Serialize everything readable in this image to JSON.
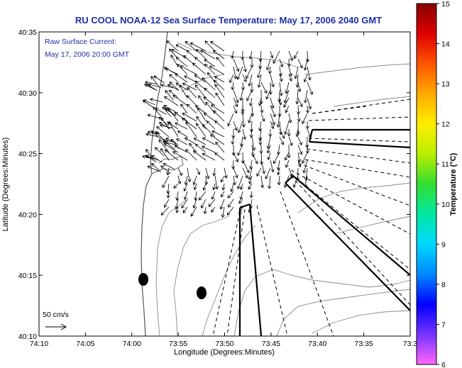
{
  "title": "RU COOL  NOAA-12  Sea Surface Temperature:  May 17, 2006 2040 GMT",
  "inset": {
    "line1": "Raw Surface Current:",
    "line2": "May 17, 2006 20:00 GMT"
  },
  "scale_label": "50 cm/s",
  "axes": {
    "xlabel": "Longitude (Degrees:Minutes)",
    "ylabel": "Latitude (Degrees:Minutes)",
    "xticks": [
      "74:10",
      "74:05",
      "74:00",
      "73:55",
      "73:50",
      "73:45",
      "73:40",
      "73:35",
      "73:3"
    ],
    "yticks": [
      "40:35",
      "40:30",
      "40:25",
      "40:20",
      "40:15",
      "40:10"
    ]
  },
  "colorbar": {
    "label": "Temperature (°C)",
    "ticks": [
      "15",
      "14",
      "13",
      "12",
      "11",
      "10",
      "9",
      "8",
      "7",
      "6"
    ],
    "colors": [
      "#ff66ff",
      "#7733ff",
      "#0000ff",
      "#0088ff",
      "#00d8ff",
      "#00e8a0",
      "#33dd33",
      "#bbee00",
      "#ffee00",
      "#ffaa00",
      "#ff5500",
      "#dd0000",
      "#880000"
    ]
  },
  "colors": {
    "title": "#1f2fa8",
    "land_contour": "#888888",
    "vectors": "#000000"
  }
}
